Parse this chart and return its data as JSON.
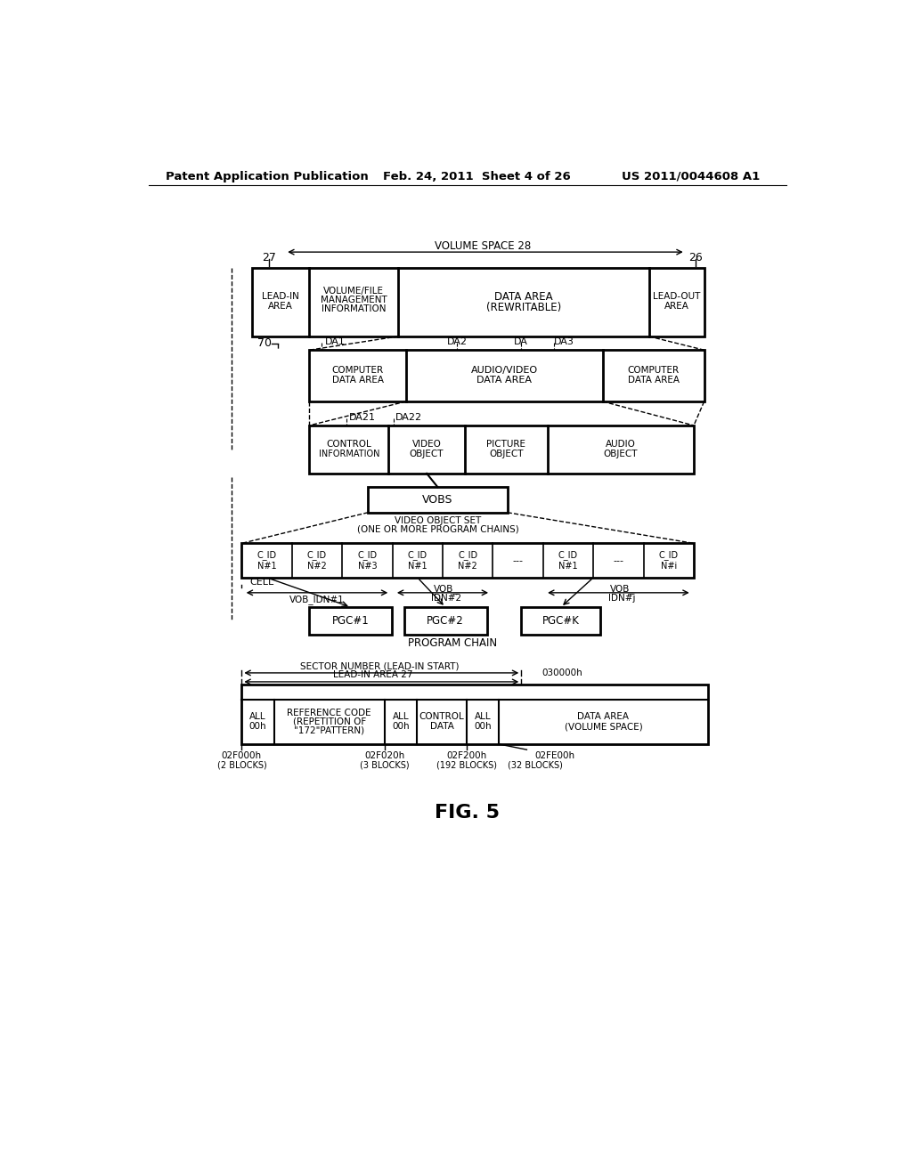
{
  "header_left": "Patent Application Publication",
  "header_mid": "Feb. 24, 2011  Sheet 4 of 26",
  "header_right": "US 2011/0044608 A1",
  "fig_label": "FIG. 5",
  "bg_color": "#ffffff"
}
